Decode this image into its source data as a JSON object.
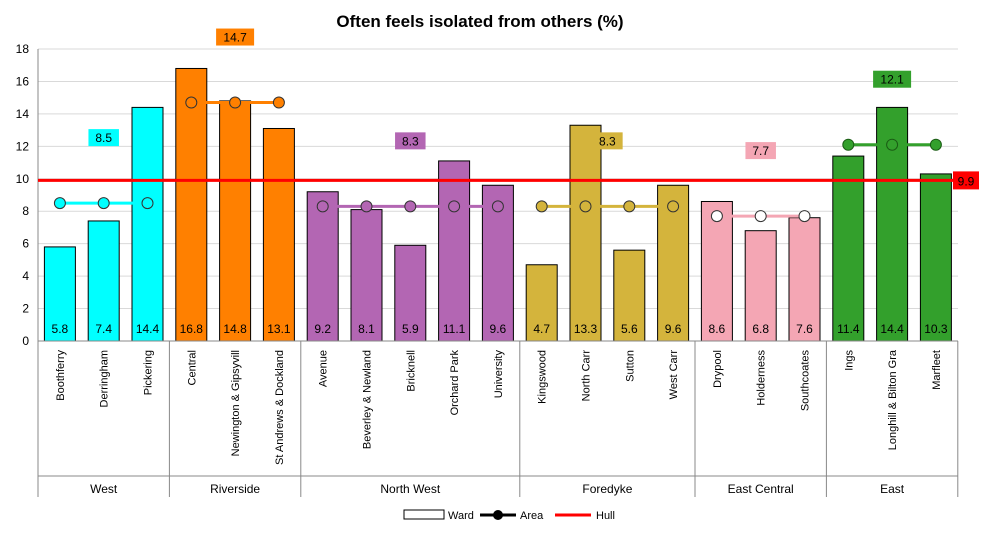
{
  "chart_data": {
    "type": "bar",
    "title": "Often feels isolated from others (%)",
    "ylim": [
      0,
      18
    ],
    "yticks": [
      0,
      2,
      4,
      6,
      8,
      10,
      12,
      14,
      16,
      18
    ],
    "grid": true,
    "legend_position": "bottom",
    "legend": [
      {
        "label": "Ward",
        "kind": "bar"
      },
      {
        "label": "Area",
        "kind": "line-marker"
      },
      {
        "label": "Hull",
        "kind": "line"
      }
    ],
    "hull": {
      "label": "9.9",
      "value": 9.9,
      "color": "#ff0000"
    },
    "groups": [
      {
        "name": "West",
        "color": "#00ffff",
        "area_value": 8.5,
        "area_label": "8.5",
        "wards": [
          {
            "name": "Boothferry",
            "value": 5.8,
            "label": "5.8"
          },
          {
            "name": "Derringham",
            "value": 7.4,
            "label": "7.4"
          },
          {
            "name": "Pickering",
            "value": 14.4,
            "label": "14.4"
          }
        ]
      },
      {
        "name": "Riverside",
        "color": "#ff8000",
        "area_value": 14.7,
        "area_label": "14.7",
        "wards": [
          {
            "name": "Central",
            "value": 16.8,
            "label": "16.8"
          },
          {
            "name": "Newington & Gipsyvill",
            "value": 14.8,
            "label": "14.8"
          },
          {
            "name": "St Andrews & Dockland",
            "value": 13.1,
            "label": "13.1"
          }
        ]
      },
      {
        "name": "North West",
        "color": "#b366b3",
        "area_value": 8.3,
        "area_label": "8.3",
        "wards": [
          {
            "name": "Avenue",
            "value": 9.2,
            "label": "9.2"
          },
          {
            "name": "Beverley & Newland",
            "value": 8.1,
            "label": "8.1"
          },
          {
            "name": "Bricknell",
            "value": 5.9,
            "label": "5.9"
          },
          {
            "name": "Orchard Park",
            "value": 11.1,
            "label": "11.1"
          },
          {
            "name": "University",
            "value": 9.6,
            "label": "9.6"
          }
        ]
      },
      {
        "name": "Foredyke",
        "color": "#d4b43c",
        "area_value": 8.3,
        "area_label": "8.3",
        "wards": [
          {
            "name": "Kingswood",
            "value": 4.7,
            "label": "4.7"
          },
          {
            "name": "North Carr",
            "value": 13.3,
            "label": "13.3"
          },
          {
            "name": "Sutton",
            "value": 5.6,
            "label": "5.6"
          },
          {
            "name": "West Carr",
            "value": 9.6,
            "label": "9.6"
          }
        ]
      },
      {
        "name": "East Central",
        "color": "#f4a6b4",
        "area_value": 7.7,
        "area_label": "7.7",
        "wards": [
          {
            "name": "Drypool",
            "value": 8.6,
            "label": "8.6"
          },
          {
            "name": "Holderness",
            "value": 6.8,
            "label": "6.8"
          },
          {
            "name": "Southcoates",
            "value": 7.6,
            "label": "7.6"
          }
        ]
      },
      {
        "name": "East",
        "color": "#33a02c",
        "area_value": 12.1,
        "area_label": "12.1",
        "wards": [
          {
            "name": "Ings",
            "value": 11.4,
            "label": "11.4"
          },
          {
            "name": "Longhill & Bilton Gra",
            "value": 14.4,
            "label": "14.4"
          },
          {
            "name": "Marfleet",
            "value": 10.3,
            "label": "10.3"
          }
        ]
      }
    ]
  }
}
